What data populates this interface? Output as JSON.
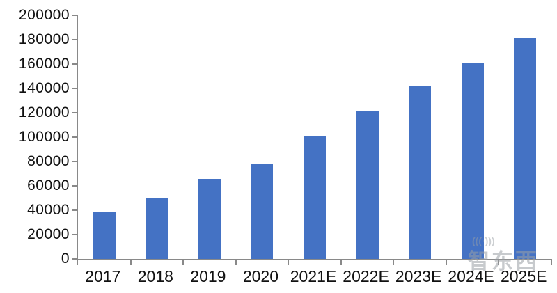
{
  "chart_data": {
    "type": "bar",
    "title": "",
    "xlabel": "",
    "ylabel": "",
    "categories": [
      "2017",
      "2018",
      "2019",
      "2020",
      "2021E",
      "2022E",
      "2023E",
      "2024E",
      "2025E"
    ],
    "values": [
      38500,
      50500,
      65500,
      78500,
      101000,
      122000,
      141500,
      161000,
      181500
    ],
    "ylim": [
      0,
      200000
    ],
    "ytick_interval": 20000,
    "ytick_labels": [
      "0",
      "20000",
      "40000",
      "60000",
      "80000",
      "100000",
      "120000",
      "140000",
      "160000",
      "180000",
      "200000"
    ],
    "grid": false,
    "legend": null,
    "bar_color": "#4472C4",
    "axis_color": "#898989",
    "text_color": "#111111"
  },
  "watermark": {
    "text": "智东西",
    "antenna_glyph": "(((·)))"
  }
}
